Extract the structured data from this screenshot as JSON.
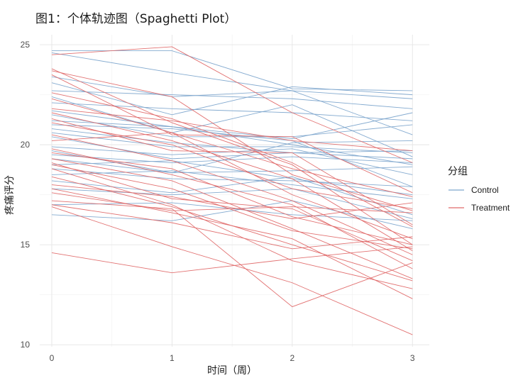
{
  "chart_data": {
    "type": "line",
    "title": "图1：个体轨迹图（Spaghetti Plot）",
    "xlabel": "时间（周）",
    "ylabel": "疼痛评分",
    "x": [
      0,
      1,
      2,
      3
    ],
    "xlim": [
      -0.1,
      3.14
    ],
    "ylim": [
      9.9,
      25.5
    ],
    "x_ticks": [
      0,
      1,
      2,
      3
    ],
    "y_ticks": [
      10,
      15,
      20,
      25
    ],
    "grid": true,
    "legend": {
      "title": "分组",
      "position": "right"
    },
    "groups": [
      {
        "name": "Control",
        "color": "#7ea6cd"
      },
      {
        "name": "Treatment",
        "color": "#e06a6a"
      }
    ],
    "series": [
      {
        "group": "Control",
        "values": [
          24.7,
          24.7,
          22.8,
          22.7
        ]
      },
      {
        "group": "Control",
        "values": [
          24.6,
          23.6,
          22.7,
          20.5
        ]
      },
      {
        "group": "Control",
        "values": [
          23.4,
          22.4,
          22.7,
          22.3
        ]
      },
      {
        "group": "Control",
        "values": [
          23.1,
          21.5,
          22.9,
          22.5
        ]
      },
      {
        "group": "Control",
        "values": [
          22.7,
          22.5,
          22.3,
          21.8
        ]
      },
      {
        "group": "Control",
        "values": [
          22.4,
          20.6,
          22.0,
          19.4
        ]
      },
      {
        "group": "Control",
        "values": [
          22.1,
          21.8,
          21.6,
          21.2
        ]
      },
      {
        "group": "Control",
        "values": [
          21.7,
          20.9,
          20.3,
          21.6
        ]
      },
      {
        "group": "Control",
        "values": [
          21.5,
          20.4,
          20.4,
          21.0
        ]
      },
      {
        "group": "Control",
        "values": [
          21.2,
          20.9,
          20.0,
          19.0
        ]
      },
      {
        "group": "Control",
        "values": [
          21.0,
          20.8,
          20.2,
          17.9
        ]
      },
      {
        "group": "Control",
        "values": [
          20.8,
          20.1,
          19.6,
          19.3
        ]
      },
      {
        "group": "Control",
        "values": [
          20.6,
          19.9,
          19.9,
          19.6
        ]
      },
      {
        "group": "Control",
        "values": [
          20.4,
          19.3,
          19.6,
          19.7
        ]
      },
      {
        "group": "Control",
        "values": [
          19.9,
          19.5,
          19.8,
          18.5
        ]
      },
      {
        "group": "Control",
        "values": [
          19.7,
          18.6,
          20.1,
          20.2
        ]
      },
      {
        "group": "Control",
        "values": [
          19.5,
          19.1,
          19.4,
          19.1
        ]
      },
      {
        "group": "Control",
        "values": [
          19.3,
          18.6,
          18.7,
          18.9
        ]
      },
      {
        "group": "Control",
        "values": [
          19.0,
          19.2,
          18.3,
          17.5
        ]
      },
      {
        "group": "Control",
        "values": [
          18.8,
          18.3,
          18.2,
          17.9
        ]
      },
      {
        "group": "Control",
        "values": [
          18.5,
          18.7,
          18.0,
          17.3
        ]
      },
      {
        "group": "Control",
        "values": [
          18.2,
          17.6,
          18.4,
          16.5
        ]
      },
      {
        "group": "Control",
        "values": [
          17.8,
          17.5,
          17.8,
          16.3
        ]
      },
      {
        "group": "Control",
        "values": [
          17.0,
          17.1,
          16.5,
          16.2
        ]
      },
      {
        "group": "Control",
        "values": [
          16.5,
          16.2,
          17.2,
          15.8
        ]
      },
      {
        "group": "Treatment",
        "values": [
          24.5,
          24.9,
          21.6,
          19.1
        ]
      },
      {
        "group": "Treatment",
        "values": [
          23.8,
          21.1,
          19.0,
          15.0
        ]
      },
      {
        "group": "Treatment",
        "values": [
          23.7,
          22.4,
          18.5,
          16.7
        ]
      },
      {
        "group": "Treatment",
        "values": [
          23.5,
          20.5,
          20.4,
          17.6
        ]
      },
      {
        "group": "Treatment",
        "values": [
          22.6,
          21.3,
          19.1,
          15.9
        ]
      },
      {
        "group": "Treatment",
        "values": [
          22.3,
          20.6,
          18.8,
          17.4
        ]
      },
      {
        "group": "Treatment",
        "values": [
          21.8,
          21.2,
          20.2,
          19.7
        ]
      },
      {
        "group": "Treatment",
        "values": [
          21.6,
          20.2,
          18.3,
          14.7
        ]
      },
      {
        "group": "Treatment",
        "values": [
          21.3,
          19.7,
          19.6,
          16.0
        ]
      },
      {
        "group": "Treatment",
        "values": [
          21.1,
          20.0,
          17.8,
          16.8
        ]
      },
      {
        "group": "Treatment",
        "values": [
          20.5,
          19.2,
          17.2,
          14.5
        ]
      },
      {
        "group": "Treatment",
        "values": [
          20.2,
          20.6,
          17.5,
          15.3
        ]
      },
      {
        "group": "Treatment",
        "values": [
          19.8,
          18.5,
          17.0,
          13.8
        ]
      },
      {
        "group": "Treatment",
        "values": [
          19.6,
          18.8,
          16.4,
          15.0
        ]
      },
      {
        "group": "Treatment",
        "values": [
          19.3,
          18.2,
          15.8,
          13.3
        ]
      },
      {
        "group": "Treatment",
        "values": [
          19.1,
          17.3,
          16.8,
          14.2
        ]
      },
      {
        "group": "Treatment",
        "values": [
          19.0,
          17.8,
          15.7,
          14.8
        ]
      },
      {
        "group": "Treatment",
        "values": [
          18.8,
          17.0,
          14.2,
          12.8
        ]
      },
      {
        "group": "Treatment",
        "values": [
          18.4,
          16.9,
          15.0,
          13.2
        ]
      },
      {
        "group": "Treatment",
        "values": [
          18.0,
          17.4,
          16.3,
          17.1
        ]
      },
      {
        "group": "Treatment",
        "values": [
          17.8,
          16.6,
          15.3,
          12.3
        ]
      },
      {
        "group": "Treatment",
        "values": [
          17.6,
          16.7,
          16.9,
          16.6
        ]
      },
      {
        "group": "Treatment",
        "values": [
          17.2,
          16.8,
          11.9,
          14.1
        ]
      },
      {
        "group": "Treatment",
        "values": [
          17.0,
          16.1,
          14.8,
          15.4
        ]
      },
      {
        "group": "Treatment",
        "values": [
          16.9,
          14.9,
          13.1,
          10.5
        ]
      },
      {
        "group": "Treatment",
        "values": [
          14.6,
          13.6,
          14.3,
          14.9
        ]
      }
    ]
  }
}
